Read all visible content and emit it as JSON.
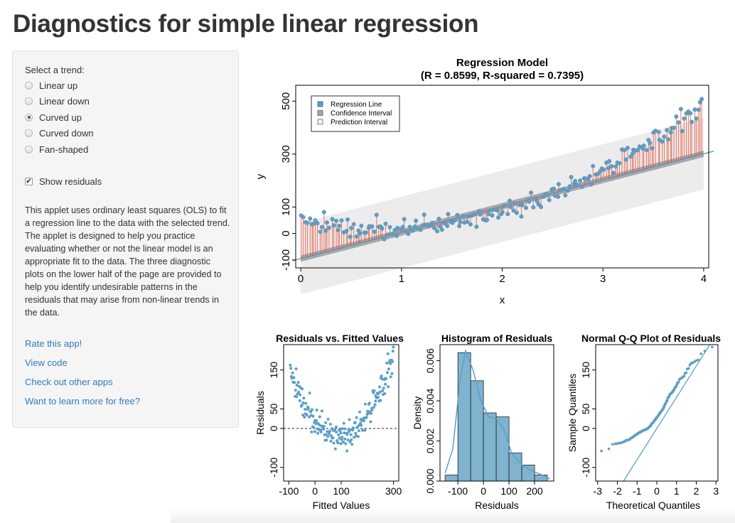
{
  "page": {
    "title": "Diagnostics for simple linear regression"
  },
  "sidebar": {
    "select_label": "Select a trend:",
    "trends": [
      {
        "label": "Linear up",
        "selected": false
      },
      {
        "label": "Linear down",
        "selected": false
      },
      {
        "label": "Curved up",
        "selected": true
      },
      {
        "label": "Curved down",
        "selected": false
      },
      {
        "label": "Fan-shaped",
        "selected": false
      }
    ],
    "show_residuals": {
      "label": "Show residuals",
      "checked": true
    },
    "description": "This applet uses ordinary least squares (OLS) to fit a regression line to the data with the selected trend. The applet is designed to help you practice evaluating whether or not the linear model is an appropriate fit to the data. The three diagnostic plots on the lower half of the page are provided to help you identify undesirable patterns in the residuals that may arise from non-linear trends in the data.",
    "links": [
      "Rate this app!",
      "View code",
      "Check out other apps",
      "Want to learn more for free?"
    ]
  },
  "colors": {
    "link": "#337ab7",
    "point": "#5d9fc7",
    "residual": "#e8553e",
    "confidence": "#a8a8a8",
    "prediction": "#ececec",
    "hist_bar": "#7fb3d0"
  },
  "chart_data": [
    {
      "type": "scatter",
      "title": "Regression Model",
      "subtitle": "(R = 0.8599, R-squared = 0.7395)",
      "xlabel": "x",
      "ylabel": "y",
      "xlim": [
        -0.05,
        4.05
      ],
      "ylim": [
        -130,
        560
      ],
      "x_ticks": [
        0,
        1,
        2,
        3,
        4
      ],
      "y_ticks": [
        -100,
        0,
        100,
        300,
        500
      ],
      "x_tick_labels": [
        "0",
        "1",
        "2",
        "3",
        "4"
      ],
      "y_tick_labels": [
        "-100",
        "0",
        "100",
        "300",
        "500"
      ],
      "regression_line": {
        "intercept": -95,
        "slope": 99
      },
      "confidence_halfwidth": 12,
      "prediction_halfwidth": 135,
      "curve": {
        "model": "y = 45 - 70x + 45x^2",
        "noise_sd": 18,
        "n": 200,
        "x_range": [
          0,
          4
        ]
      },
      "legend": {
        "position": "top-left",
        "entries": [
          "Regression Line",
          "Confidence Interval",
          "Prediction Interval"
        ]
      },
      "grid": false
    },
    {
      "type": "scatter",
      "title": "Residuals vs. Fitted Values",
      "xlabel": "Fitted Values",
      "ylabel": "Residuals",
      "xlim": [
        -120,
        320
      ],
      "ylim": [
        -135,
        215
      ],
      "x_ticks": [
        -100,
        0,
        100,
        300
      ],
      "y_ticks": [
        -100,
        0,
        50,
        150
      ],
      "x_tick_labels": [
        "-100",
        "0",
        "100",
        "300"
      ],
      "y_tick_labels": [
        "-100",
        "0",
        "50",
        "150"
      ],
      "reference_line": 0,
      "grid": false
    },
    {
      "type": "bar",
      "title": "Histogram of Residuals",
      "xlabel": "Residuals",
      "ylabel": "Density",
      "bin_edges": [
        -150,
        -100,
        -50,
        0,
        50,
        100,
        150,
        200,
        250
      ],
      "values": [
        0.0003,
        0.0064,
        0.005,
        0.0034,
        0.0032,
        0.0014,
        0.0008,
        0.0003
      ],
      "density_curve": [
        [
          -150,
          0.0004
        ],
        [
          -120,
          0.0016
        ],
        [
          -90,
          0.0052
        ],
        [
          -70,
          0.0065
        ],
        [
          -40,
          0.0055
        ],
        [
          -10,
          0.004
        ],
        [
          20,
          0.0032
        ],
        [
          50,
          0.0031
        ],
        [
          80,
          0.0026
        ],
        [
          110,
          0.0014
        ],
        [
          150,
          0.0008
        ],
        [
          190,
          0.0005
        ],
        [
          230,
          0.0003
        ],
        [
          260,
          0.0001
        ]
      ],
      "xlim": [
        -170,
        275
      ],
      "ylim": [
        0,
        0.0068
      ],
      "x_ticks": [
        -100,
        0,
        100,
        200
      ],
      "y_ticks": [
        0.0,
        0.002,
        0.004,
        0.006
      ],
      "x_tick_labels": [
        "-100",
        "0",
        "100",
        "200"
      ],
      "y_tick_labels": [
        "0.000",
        "0.002",
        "0.004",
        "0.006"
      ],
      "grid": false
    },
    {
      "type": "scatter",
      "title": "Normal Q-Q Plot of Residuals",
      "xlabel": "Theoretical Quantiles",
      "ylabel": "Sample Quantiles",
      "xlim": [
        -3.1,
        3.1
      ],
      "ylim": [
        -135,
        215
      ],
      "x_ticks": [
        -3,
        -2,
        -1,
        0,
        1,
        2,
        3
      ],
      "y_ticks": [
        -100,
        0,
        50,
        150
      ],
      "x_tick_labels": [
        "-3",
        "-2",
        "-1",
        "0",
        "1",
        "2",
        "3"
      ],
      "y_tick_labels": [
        "-100",
        "0",
        "50",
        "150"
      ],
      "reference_line": {
        "intercept": 0,
        "slope": 80
      },
      "grid": false
    }
  ]
}
